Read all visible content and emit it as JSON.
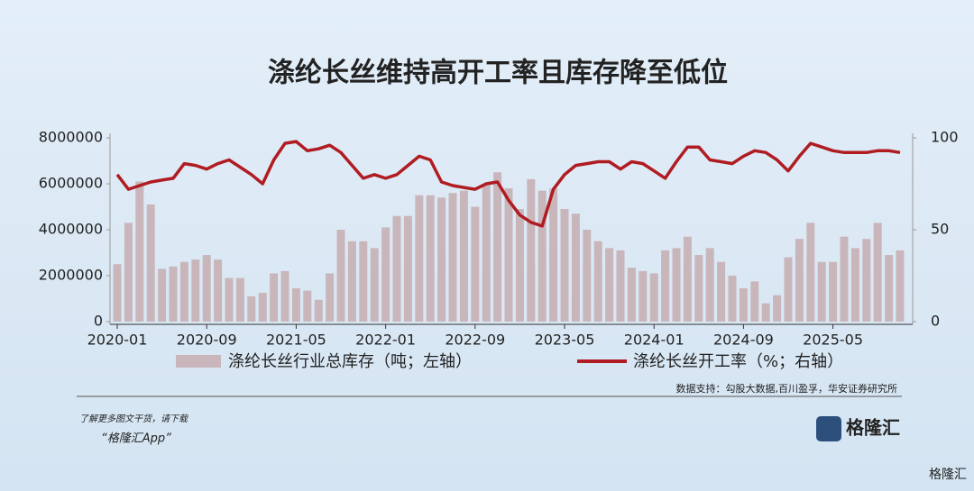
{
  "chart_data": {
    "type": "bar-line",
    "title": "涤纶长丝维持高开工率且库存降至低位",
    "categories": [
      "2020-01",
      null,
      null,
      null,
      null,
      null,
      null,
      null,
      "2020-09",
      null,
      null,
      null,
      null,
      null,
      null,
      null,
      "2021-05",
      null,
      null,
      null,
      null,
      null,
      null,
      null,
      "2022-01",
      null,
      null,
      null,
      null,
      null,
      null,
      null,
      "2022-09",
      null,
      null,
      null,
      null,
      null,
      null,
      null,
      "2023-05",
      null,
      null,
      null,
      null,
      null,
      null,
      null,
      "2024-01",
      null,
      null,
      null,
      null,
      null,
      null,
      null,
      "2024-09",
      null,
      null,
      null,
      null,
      null,
      null,
      null,
      "2025-05",
      null,
      null,
      null,
      null,
      null,
      null
    ],
    "series": [
      {
        "name": "涤纶长丝行业总库存（吨；左轴）",
        "type": "bar",
        "color": "#c9b6ba",
        "values": [
          2500000,
          4300000,
          6100000,
          5100000,
          2300000,
          2400000,
          2600000,
          2700000,
          2900000,
          2700000,
          1900000,
          1900000,
          1100000,
          1250000,
          2100000,
          2200000,
          1450000,
          1350000,
          950000,
          2100000,
          4000000,
          3500000,
          3500000,
          3200000,
          4100000,
          4600000,
          4600000,
          5500000,
          5500000,
          5400000,
          5600000,
          5700000,
          5000000,
          6000000,
          6500000,
          5800000,
          4900000,
          6200000,
          5700000,
          5800000,
          4900000,
          4700000,
          4000000,
          3500000,
          3200000,
          3100000,
          2350000,
          2200000,
          2100000,
          3100000,
          3200000,
          3700000,
          2900000,
          3200000,
          2600000,
          2000000,
          1450000,
          1750000,
          800000,
          1150000,
          2800000,
          3600000,
          4300000,
          2600000,
          2600000,
          3700000,
          3200000,
          3600000,
          4300000,
          2900000,
          3100000
        ]
      },
      {
        "name": "涤纶长丝开工率（%；右轴）",
        "type": "line",
        "axis": "y2",
        "color": "#b01c22",
        "values": [
          80,
          72,
          74,
          76,
          77,
          78,
          86,
          85,
          83,
          86,
          88,
          84,
          80,
          75,
          88,
          97,
          98,
          93,
          94,
          96,
          92,
          85,
          78,
          80,
          78,
          80,
          85,
          90,
          88,
          76,
          74,
          73,
          72,
          75,
          76,
          66,
          58,
          54,
          52,
          72,
          80,
          85,
          86,
          87,
          87,
          83,
          87,
          86,
          82,
          78,
          87,
          95,
          95,
          88,
          87,
          86,
          90,
          93,
          92,
          88,
          82,
          90,
          97,
          95,
          93,
          92,
          92,
          92,
          93,
          93,
          92
        ]
      }
    ],
    "ylim": [
      0,
      8000000
    ],
    "yticks": [
      0,
      2000000,
      4000000,
      6000000,
      8000000
    ],
    "y2lim": [
      0,
      100
    ],
    "y2ticks": [
      0,
      50,
      100
    ],
    "source": "数据支持：勾股大数据,百川盈孚，华安证券研究所"
  },
  "footer": {
    "line1": "了解更多图文干货，请下载",
    "line2": "“格隆汇App”",
    "logo": "格隆汇",
    "watermark": "格隆汇"
  }
}
